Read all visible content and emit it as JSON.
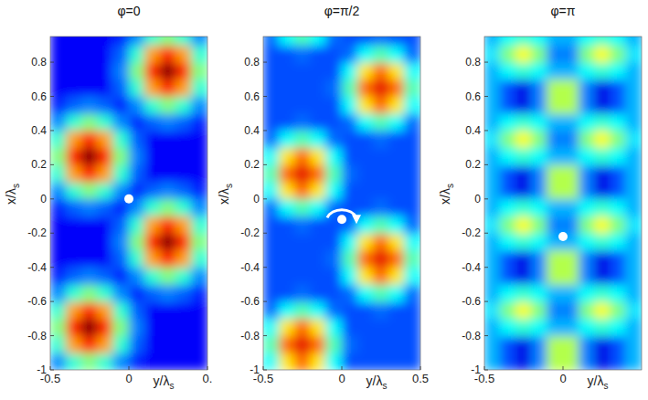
{
  "chart_data": [
    {
      "type": "heatmap",
      "title": "φ=0",
      "xlabel": "y/λs",
      "ylabel": "x/λs",
      "xlim": [
        -0.5,
        0.5
      ],
      "ylim": [
        -1,
        0.95
      ],
      "xticks": [
        -0.5,
        0,
        {
          "value": 0.5,
          "label": "0."
        }
      ],
      "yticks": [
        -1,
        -0.8,
        -0.6,
        -0.4,
        -0.2,
        0,
        0.2,
        0.4,
        0.6,
        0.8
      ],
      "zlim": [
        0,
        1
      ],
      "x": [
        -0.45,
        -0.35,
        -0.25,
        -0.15,
        -0.05,
        0.05,
        0.15,
        0.25,
        0.35,
        0.45
      ],
      "y": [
        -0.95,
        -0.85,
        -0.75,
        -0.65,
        -0.55,
        -0.45,
        -0.35,
        -0.25,
        -0.15,
        -0.05,
        0.05,
        0.15,
        0.25,
        0.35,
        0.45,
        0.55,
        0.65,
        0.75,
        0.85,
        0.95
      ],
      "cells": [
        [
          0.26,
          0.42,
          0.5,
          0.42,
          0.26,
          0.16,
          0.12,
          0.12,
          0.12,
          0.12
        ],
        [
          0.42,
          0.72,
          0.85,
          0.72,
          0.42,
          0.22,
          0.12,
          0.12,
          0.12,
          0.12
        ],
        [
          0.5,
          0.85,
          1.0,
          0.85,
          0.5,
          0.25,
          0.12,
          0.12,
          0.12,
          0.12
        ],
        [
          0.42,
          0.72,
          0.85,
          0.72,
          0.42,
          0.22,
          0.12,
          0.12,
          0.12,
          0.12
        ],
        [
          0.26,
          0.42,
          0.5,
          0.42,
          0.26,
          0.16,
          0.22,
          0.25,
          0.22,
          0.16
        ],
        [
          0.16,
          0.22,
          0.25,
          0.22,
          0.16,
          0.26,
          0.42,
          0.5,
          0.42,
          0.26
        ],
        [
          0.12,
          0.12,
          0.12,
          0.12,
          0.22,
          0.42,
          0.72,
          0.85,
          0.72,
          0.42
        ],
        [
          0.12,
          0.12,
          0.12,
          0.12,
          0.25,
          0.5,
          0.85,
          1.0,
          0.85,
          0.5
        ],
        [
          0.12,
          0.12,
          0.12,
          0.12,
          0.22,
          0.42,
          0.72,
          0.85,
          0.72,
          0.42
        ],
        [
          0.16,
          0.22,
          0.25,
          0.22,
          0.16,
          0.26,
          0.42,
          0.5,
          0.42,
          0.26
        ],
        [
          0.26,
          0.42,
          0.5,
          0.42,
          0.26,
          0.16,
          0.22,
          0.25,
          0.22,
          0.16
        ],
        [
          0.42,
          0.72,
          0.85,
          0.72,
          0.42,
          0.22,
          0.12,
          0.12,
          0.12,
          0.12
        ],
        [
          0.5,
          0.85,
          1.0,
          0.85,
          0.5,
          0.25,
          0.12,
          0.12,
          0.12,
          0.12
        ],
        [
          0.42,
          0.72,
          0.85,
          0.72,
          0.42,
          0.22,
          0.12,
          0.12,
          0.12,
          0.12
        ],
        [
          0.26,
          0.42,
          0.5,
          0.42,
          0.26,
          0.16,
          0.22,
          0.25,
          0.22,
          0.16
        ],
        [
          0.16,
          0.22,
          0.25,
          0.22,
          0.16,
          0.26,
          0.42,
          0.5,
          0.42,
          0.26
        ],
        [
          0.12,
          0.12,
          0.12,
          0.12,
          0.22,
          0.42,
          0.72,
          0.85,
          0.72,
          0.42
        ],
        [
          0.12,
          0.12,
          0.12,
          0.12,
          0.25,
          0.5,
          0.85,
          1.0,
          0.85,
          0.5
        ],
        [
          0.12,
          0.12,
          0.12,
          0.12,
          0.22,
          0.42,
          0.72,
          0.85,
          0.72,
          0.42
        ],
        [
          0.12,
          0.12,
          0.12,
          0.12,
          0.16,
          0.26,
          0.42,
          0.5,
          0.42,
          0.26
        ]
      ],
      "point": {
        "x": 0,
        "y": 0
      }
    },
    {
      "type": "heatmap",
      "title": "φ=π/2",
      "xlabel": "y/λs",
      "ylabel": "x/λs",
      "xlim": [
        -0.5,
        0.5
      ],
      "ylim": [
        -1,
        0.95
      ],
      "xticks": [
        -0.5,
        0,
        0.5
      ],
      "yticks": [
        -1,
        -0.8,
        -0.6,
        -0.4,
        -0.2,
        0,
        0.2,
        0.4,
        0.6,
        0.8
      ],
      "zlim": [
        0,
        1
      ],
      "x": [
        -0.45,
        -0.35,
        -0.25,
        -0.15,
        -0.05,
        0.05,
        0.15,
        0.25,
        0.35,
        0.45
      ],
      "y": [
        -0.95,
        -0.85,
        -0.75,
        -0.65,
        -0.55,
        -0.45,
        -0.35,
        -0.25,
        -0.15,
        -0.05,
        0.05,
        0.15,
        0.25,
        0.35,
        0.45,
        0.55,
        0.65,
        0.75,
        0.85,
        0.95
      ],
      "cells": [
        [
          0.38,
          0.65,
          0.77,
          0.65,
          0.38,
          0.2,
          0.2,
          0.2,
          0.2,
          0.2
        ],
        [
          0.45,
          0.77,
          0.9,
          0.77,
          0.45,
          0.23,
          0.2,
          0.2,
          0.2,
          0.2
        ],
        [
          0.38,
          0.65,
          0.77,
          0.65,
          0.38,
          0.2,
          0.2,
          0.2,
          0.2,
          0.2
        ],
        [
          0.23,
          0.38,
          0.45,
          0.38,
          0.23,
          0.2,
          0.2,
          0.23,
          0.2,
          0.2
        ],
        [
          0.2,
          0.2,
          0.23,
          0.2,
          0.2,
          0.23,
          0.38,
          0.45,
          0.38,
          0.23
        ],
        [
          0.2,
          0.2,
          0.2,
          0.2,
          0.2,
          0.38,
          0.65,
          0.77,
          0.65,
          0.38
        ],
        [
          0.2,
          0.2,
          0.2,
          0.2,
          0.23,
          0.45,
          0.77,
          0.9,
          0.77,
          0.45
        ],
        [
          0.2,
          0.2,
          0.2,
          0.2,
          0.2,
          0.38,
          0.65,
          0.77,
          0.65,
          0.38
        ],
        [
          0.2,
          0.2,
          0.23,
          0.2,
          0.2,
          0.23,
          0.38,
          0.45,
          0.38,
          0.23
        ],
        [
          0.23,
          0.38,
          0.45,
          0.38,
          0.23,
          0.2,
          0.2,
          0.23,
          0.2,
          0.2
        ],
        [
          0.38,
          0.65,
          0.77,
          0.65,
          0.38,
          0.2,
          0.2,
          0.2,
          0.2,
          0.2
        ],
        [
          0.45,
          0.77,
          0.9,
          0.77,
          0.45,
          0.23,
          0.2,
          0.2,
          0.2,
          0.2
        ],
        [
          0.38,
          0.65,
          0.77,
          0.65,
          0.38,
          0.2,
          0.2,
          0.2,
          0.2,
          0.2
        ],
        [
          0.23,
          0.38,
          0.45,
          0.38,
          0.23,
          0.2,
          0.2,
          0.23,
          0.2,
          0.2
        ],
        [
          0.2,
          0.2,
          0.23,
          0.2,
          0.2,
          0.23,
          0.38,
          0.45,
          0.38,
          0.23
        ],
        [
          0.2,
          0.2,
          0.2,
          0.2,
          0.2,
          0.38,
          0.65,
          0.77,
          0.65,
          0.38
        ],
        [
          0.2,
          0.2,
          0.2,
          0.2,
          0.23,
          0.45,
          0.77,
          0.9,
          0.77,
          0.45
        ],
        [
          0.2,
          0.2,
          0.2,
          0.2,
          0.2,
          0.38,
          0.65,
          0.77,
          0.65,
          0.38
        ],
        [
          0.2,
          0.2,
          0.23,
          0.2,
          0.2,
          0.23,
          0.38,
          0.45,
          0.38,
          0.23
        ],
        [
          0.23,
          0.38,
          0.45,
          0.38,
          0.23,
          0.2,
          0.2,
          0.23,
          0.2,
          0.2
        ]
      ],
      "point": {
        "x": 0,
        "y": -0.12
      }
    },
    {
      "type": "heatmap",
      "title": "φ=π",
      "xlabel": "y/λs",
      "ylabel": "x/λs",
      "xlim": [
        -0.5,
        0.5
      ],
      "ylim": [
        -1,
        0.95
      ],
      "xticks": [
        -0.5,
        0
      ],
      "yticks": [
        -1,
        -0.8,
        -0.6,
        -0.4,
        -0.2,
        0,
        0.2,
        0.4,
        0.6,
        0.8
      ],
      "zlim": [
        0,
        1
      ],
      "x": [
        -0.45,
        -0.35,
        -0.25,
        -0.15,
        -0.05,
        0.05,
        0.15,
        0.25,
        0.35,
        0.45
      ],
      "y": [
        -0.95,
        -0.85,
        -0.75,
        -0.65,
        -0.55,
        -0.45,
        -0.35,
        -0.25,
        -0.15,
        -0.05,
        0.05,
        0.15,
        0.25,
        0.35,
        0.45,
        0.55,
        0.65,
        0.75,
        0.85,
        0.95
      ],
      "cells": [
        [
          0.3,
          0.2,
          0.1,
          0.25,
          0.55,
          0.55,
          0.25,
          0.1,
          0.2,
          0.3
        ],
        [
          0.3,
          0.2,
          0.1,
          0.25,
          0.55,
          0.55,
          0.25,
          0.1,
          0.2,
          0.3
        ],
        [
          0.3,
          0.38,
          0.42,
          0.38,
          0.3,
          0.3,
          0.38,
          0.42,
          0.38,
          0.3
        ],
        [
          0.35,
          0.5,
          0.62,
          0.5,
          0.25,
          0.25,
          0.5,
          0.62,
          0.5,
          0.35
        ],
        [
          0.3,
          0.38,
          0.42,
          0.38,
          0.3,
          0.3,
          0.38,
          0.42,
          0.38,
          0.3
        ],
        [
          0.3,
          0.2,
          0.1,
          0.25,
          0.55,
          0.55,
          0.25,
          0.1,
          0.2,
          0.3
        ],
        [
          0.3,
          0.2,
          0.1,
          0.25,
          0.55,
          0.55,
          0.25,
          0.1,
          0.2,
          0.3
        ],
        [
          0.3,
          0.38,
          0.42,
          0.38,
          0.3,
          0.3,
          0.38,
          0.42,
          0.38,
          0.3
        ],
        [
          0.35,
          0.5,
          0.62,
          0.5,
          0.25,
          0.25,
          0.5,
          0.62,
          0.5,
          0.35
        ],
        [
          0.3,
          0.38,
          0.42,
          0.38,
          0.3,
          0.3,
          0.38,
          0.42,
          0.38,
          0.3
        ],
        [
          0.3,
          0.2,
          0.1,
          0.25,
          0.55,
          0.55,
          0.25,
          0.1,
          0.2,
          0.3
        ],
        [
          0.3,
          0.2,
          0.1,
          0.25,
          0.55,
          0.55,
          0.25,
          0.1,
          0.2,
          0.3
        ],
        [
          0.3,
          0.38,
          0.42,
          0.38,
          0.3,
          0.3,
          0.38,
          0.42,
          0.38,
          0.3
        ],
        [
          0.35,
          0.5,
          0.62,
          0.5,
          0.25,
          0.25,
          0.5,
          0.62,
          0.5,
          0.35
        ],
        [
          0.3,
          0.38,
          0.42,
          0.38,
          0.3,
          0.3,
          0.38,
          0.42,
          0.38,
          0.3
        ],
        [
          0.3,
          0.2,
          0.1,
          0.25,
          0.55,
          0.55,
          0.25,
          0.1,
          0.2,
          0.3
        ],
        [
          0.3,
          0.2,
          0.1,
          0.25,
          0.55,
          0.55,
          0.25,
          0.1,
          0.2,
          0.3
        ],
        [
          0.3,
          0.38,
          0.42,
          0.38,
          0.3,
          0.3,
          0.38,
          0.42,
          0.38,
          0.3
        ],
        [
          0.35,
          0.5,
          0.62,
          0.5,
          0.25,
          0.25,
          0.5,
          0.62,
          0.5,
          0.35
        ],
        [
          0.3,
          0.38,
          0.42,
          0.38,
          0.3,
          0.3,
          0.38,
          0.42,
          0.38,
          0.3
        ]
      ],
      "point": {
        "x": 0,
        "y": -0.22
      }
    }
  ]
}
